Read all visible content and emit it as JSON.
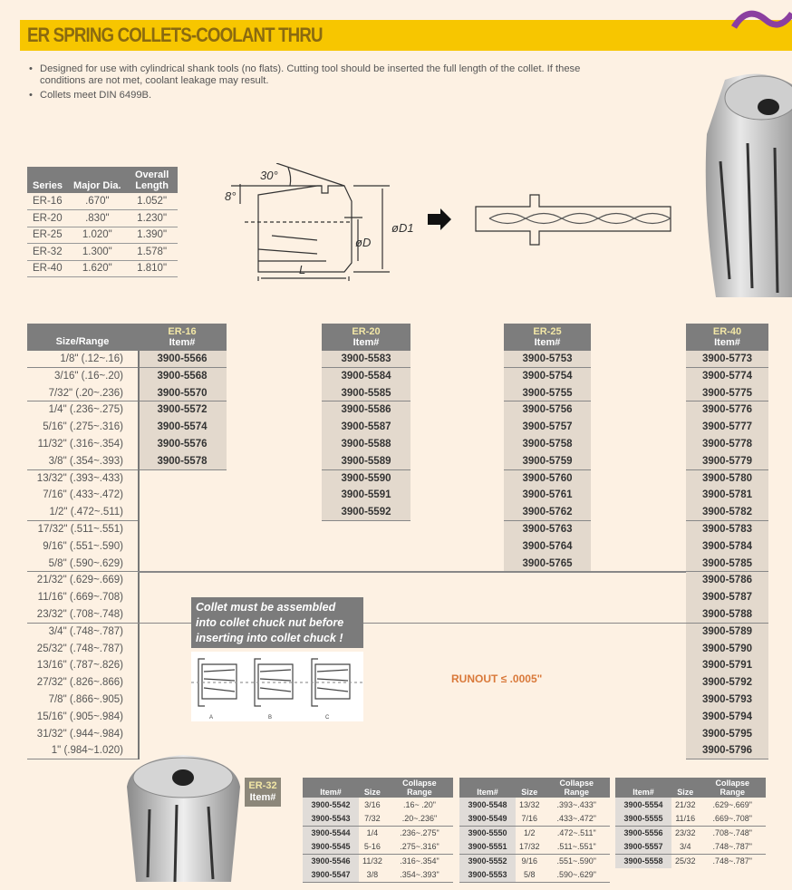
{
  "title": "ER SPRING COLLETS-COOLANT THRU",
  "bullets": [
    "Designed for use with cylindrical shank tools (no flats). Cutting tool should be inserted the full length of the collet. If these conditions are not met, coolant leakage may result.",
    "Collets meet DIN 6499B."
  ],
  "spec_table": {
    "headers": [
      "Series",
      "Major Dia.",
      "Overall Length"
    ],
    "rows": [
      [
        "ER-16",
        ".670\"",
        "1.052\""
      ],
      [
        "ER-20",
        ".830\"",
        "1.230\""
      ],
      [
        "ER-25",
        "1.020\"",
        "1.390\""
      ],
      [
        "ER-32",
        "1.300\"",
        "1.578\""
      ],
      [
        "ER-40",
        "1.620\"",
        "1.810\""
      ]
    ]
  },
  "diagram": {
    "angle1": "30°",
    "angle2": "8°",
    "d": "øD",
    "d1": "øD1",
    "l": "L"
  },
  "main_table": {
    "size_header": "Size/Range",
    "sizes": [
      "1/8\" (.12~.16)",
      "3/16\" (.16~.20)",
      "7/32\" (.20~.236)",
      "1/4\" (.236~.275)",
      "5/16\" (.275~.316)",
      "11/32\" (.316~.354)",
      "3/8\" (.354~.393)",
      "13/32\" (.393~.433)",
      "7/16\" (.433~.472)",
      "1/2\" (.472~.511)",
      "17/32\" (.511~.551)",
      "9/16\" (.551~.590)",
      "5/8\" (.590~.629)",
      "21/32\" (.629~.669)",
      "11/16\" (.669~.708)",
      "23/32\" (.708~.748)",
      "3/4\" (.748~.787)",
      "25/32\" (.748~.787)",
      "13/16\" (.787~.826)",
      "27/32\" (.826~.866)",
      "7/8\" (.866~.905)",
      "15/16\" (.905~.984)",
      "31/32\" (.944~.984)",
      "1\" (.984~1.020)"
    ],
    "columns": [
      {
        "series": "ER-16",
        "sub": "Item#",
        "items": [
          "3900-5566",
          "3900-5568",
          "3900-5570",
          "3900-5572",
          "3900-5574",
          "3900-5576",
          "3900-5578"
        ]
      },
      {
        "series": "ER-20",
        "sub": "Item#",
        "items": [
          "3900-5583",
          "3900-5584",
          "3900-5585",
          "3900-5586",
          "3900-5587",
          "3900-5588",
          "3900-5589",
          "3900-5590",
          "3900-5591",
          "3900-5592"
        ]
      },
      {
        "series": "ER-25",
        "sub": "Item#",
        "items": [
          "3900-5753",
          "3900-5754",
          "3900-5755",
          "3900-5756",
          "3900-5757",
          "3900-5758",
          "3900-5759",
          "3900-5760",
          "3900-5761",
          "3900-5762",
          "3900-5763",
          "3900-5764",
          "3900-5765"
        ]
      },
      {
        "series": "ER-40",
        "sub": "Item#",
        "items": [
          "3900-5773",
          "3900-5774",
          "3900-5775",
          "3900-5776",
          "3900-5777",
          "3900-5778",
          "3900-5779",
          "3900-5780",
          "3900-5781",
          "3900-5782",
          "3900-5783",
          "3900-5784",
          "3900-5785",
          "3900-5786",
          "3900-5787",
          "3900-5788",
          "3900-5789",
          "3900-5790",
          "3900-5791",
          "3900-5792",
          "3900-5793",
          "3900-5794",
          "3900-5795",
          "3900-5796"
        ]
      }
    ]
  },
  "note": "Collet must be assembled into collet chuck nut before inserting into collet chuck !",
  "note_figure_labels": [
    "A",
    "B",
    "C"
  ],
  "runout": "RUNOUT ≤ .0005\"",
  "er32": {
    "label": "ER-32",
    "sub": "Item#",
    "headers": [
      "Item#",
      "Size",
      "Collapse Range"
    ],
    "tables": [
      [
        [
          "3900-5542",
          "3/16",
          ".16~ .20\""
        ],
        [
          "3900-5543",
          "7/32",
          ".20~.236\""
        ],
        [
          "3900-5544",
          "1/4",
          ".236~.275\""
        ],
        [
          "3900-5545",
          "5-16",
          ".275~.316\""
        ],
        [
          "3900-5546",
          "11/32",
          ".316~.354\""
        ],
        [
          "3900-5547",
          "3/8",
          ".354~.393\""
        ]
      ],
      [
        [
          "3900-5548",
          "13/32",
          ".393~.433\""
        ],
        [
          "3900-5549",
          "7/16",
          ".433~.472\""
        ],
        [
          "3900-5550",
          "1/2",
          ".472~.511\""
        ],
        [
          "3900-5551",
          "17/32",
          ".511~.551\""
        ],
        [
          "3900-5552",
          "9/16",
          ".551~.590\""
        ],
        [
          "3900-5553",
          "5/8",
          ".590~.629\""
        ]
      ],
      [
        [
          "3900-5554",
          "21/32",
          ".629~.669\""
        ],
        [
          "3900-5555",
          "11/16",
          ".669~.708\""
        ],
        [
          "3900-5556",
          "23/32",
          ".708~.748\""
        ],
        [
          "3900-5557",
          "3/4",
          ".748~.787\""
        ],
        [
          "3900-5558",
          "25/32",
          ".748~.787\""
        ]
      ]
    ]
  },
  "colors": {
    "title_bar": "#f7c600",
    "title_text": "#8a6a10",
    "header_gray": "#7d7d7d",
    "item_bg": "#e3d9cd",
    "runout": "#d9793a",
    "background": "#fdf1e3"
  }
}
